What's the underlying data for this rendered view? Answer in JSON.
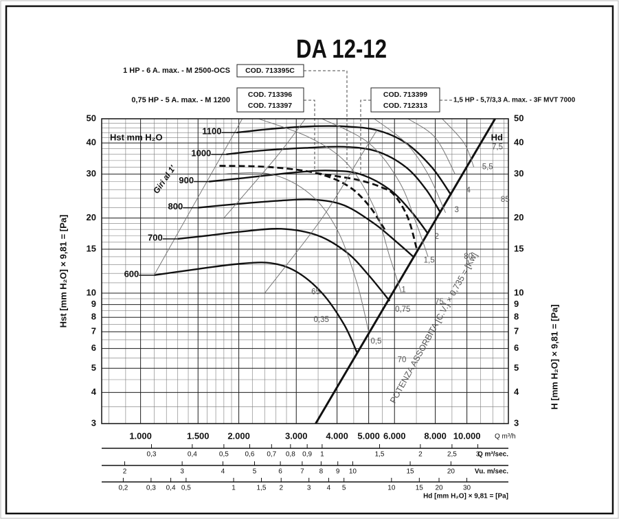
{
  "chart_data": {
    "type": "line",
    "title": "DA 12-12",
    "y_label": "Hst [mm H₂O] × 9,81 = [Pa]",
    "y2_label": "H [mm H₂O] × 9,81 = [Pa]",
    "inner_label": "Hst mm H₂O",
    "x_label": "Q m³/h",
    "power_label": "POTENZA ASSORBITA [C.V.] × 0,735 = [Kw]",
    "xlog": true,
    "ylog": true,
    "xlim": [
      760,
      13400
    ],
    "ylim": [
      3,
      50
    ],
    "xticks": [
      {
        "value": 1000,
        "label": "1.000"
      },
      {
        "value": 1500,
        "label": "1.500"
      },
      {
        "value": 2000,
        "label": "2.000"
      },
      {
        "value": 3000,
        "label": "3.000"
      },
      {
        "value": 4000,
        "label": "4.000"
      },
      {
        "value": 5000,
        "label": "5.000"
      },
      {
        "value": 6000,
        "label": "6.000"
      },
      {
        "value": 8000,
        "label": "8.000"
      },
      {
        "value": 10000,
        "label": "10.000"
      }
    ],
    "yticks": [
      3,
      4,
      5,
      6,
      7,
      8,
      9,
      10,
      15,
      20,
      30,
      40,
      50
    ],
    "xgrid": [
      800,
      900,
      1000,
      1100,
      1200,
      1300,
      1400,
      1500,
      1600,
      1700,
      1800,
      1900,
      2000,
      2200,
      2400,
      2600,
      2800,
      3000,
      3500,
      4000,
      4500,
      5000,
      5500,
      6000,
      7000,
      8000,
      9000,
      10000,
      11000,
      12000,
      13000
    ],
    "ygrid": [
      3,
      3.5,
      4,
      4.5,
      5,
      5.5,
      6,
      6.5,
      7,
      7.5,
      8,
      8.5,
      9,
      9.5,
      10,
      11,
      12,
      13,
      14,
      15,
      16,
      17,
      18,
      19,
      20,
      22,
      24,
      26,
      28,
      30,
      32,
      34,
      36,
      38,
      40,
      42,
      44,
      46,
      48,
      50
    ],
    "grid": true,
    "series": [
      {
        "name": "600",
        "style": "thick",
        "color": "#111",
        "x": [
          1100,
          1500,
          2000,
          2500,
          3000,
          3600,
          4200,
          4600
        ],
        "values": [
          11.8,
          12.5,
          13.1,
          13.2,
          12.2,
          10,
          7.5,
          5.8
        ]
      },
      {
        "name": "700",
        "style": "thick",
        "color": "#111",
        "x": [
          1300,
          1600,
          2000,
          2700,
          3500,
          4300,
          5000,
          5800
        ],
        "values": [
          16.5,
          17,
          17.6,
          18.1,
          17,
          14.5,
          11.8,
          9.3
        ]
      },
      {
        "name": "800",
        "style": "thick",
        "color": "#111",
        "x": [
          1500,
          2000,
          2700,
          3400,
          4200,
          5200,
          6100,
          6850
        ],
        "values": [
          22,
          22.8,
          23.5,
          23.7,
          22.5,
          19,
          16,
          14
        ]
      },
      {
        "name": "900",
        "style": "thick",
        "color": "#111",
        "x": [
          1620,
          2000,
          3000,
          3800,
          4700,
          5800,
          6800,
          7600
        ],
        "values": [
          28,
          28.8,
          30.5,
          31,
          30,
          26,
          21,
          17.3
        ]
      },
      {
        "name": "1000",
        "style": "thick",
        "color": "#111",
        "x": [
          1830,
          2300,
          3200,
          4200,
          5300,
          6500,
          7500,
          8300
        ],
        "values": [
          36,
          37.2,
          38.2,
          38.6,
          37,
          32,
          26,
          21
        ]
      },
      {
        "name": "1100",
        "style": "thick",
        "color": "#111",
        "x": [
          1970,
          2500,
          3300,
          4200,
          5300,
          6500,
          7800,
          8900
        ],
        "values": [
          44,
          45.5,
          46.6,
          46.6,
          45,
          40,
          32,
          25
        ]
      },
      {
        "name": "Hd",
        "style": "heavy",
        "color": "#111",
        "x": [
          3440,
          12200
        ],
        "values": [
          3,
          50
        ]
      },
      {
        "style": "dashed",
        "color": "#111",
        "x": [
          1745,
          2500,
          3440,
          4300,
          5000,
          5630
        ],
        "values": [
          32.4,
          32,
          30.3,
          27,
          22.5,
          17.8
        ]
      },
      {
        "style": "dashed",
        "color": "#111",
        "x": [
          3440,
          4600,
          5500,
          6010,
          6600,
          7050
        ],
        "values": [
          30.3,
          28.5,
          26.5,
          24.6,
          20,
          14.7
        ]
      },
      {
        "style": "thin",
        "color": "#777",
        "x": [
          1100,
          2050
        ],
        "values": [
          11.8,
          50
        ]
      },
      {
        "style": "thin",
        "color": "#777",
        "x": [
          1750,
          2500,
          3300,
          4000,
          4600,
          5000
        ],
        "values": [
          30,
          30,
          25,
          18,
          11,
          7
        ]
      },
      {
        "style": "thin",
        "color": "#777",
        "x": [
          2300,
          3300,
          4300,
          5200,
          5800,
          6300
        ],
        "values": [
          50,
          42,
          33,
          22,
          14,
          10
        ]
      },
      {
        "style": "thin",
        "color": "#777",
        "x": [
          3600,
          5000,
          6200,
          7000,
          7600
        ],
        "values": [
          50,
          40,
          28,
          19,
          14
        ]
      },
      {
        "style": "thin",
        "color": "#777",
        "x": [
          5200,
          6500,
          7600,
          8600
        ],
        "values": [
          50,
          40,
          30,
          21
        ]
      },
      {
        "style": "thin",
        "color": "#777",
        "x": [
          6600,
          8000,
          9200
        ],
        "values": [
          50,
          42,
          30
        ]
      },
      {
        "style": "thin",
        "color": "#777",
        "x": [
          8400,
          9800,
          10500
        ],
        "values": [
          50,
          40,
          32
        ]
      },
      {
        "style": "thin",
        "color": "#777",
        "x": [
          2400,
          3600,
          4700,
          5300
        ],
        "values": [
          10,
          20,
          35,
          45
        ]
      },
      {
        "style": "thin",
        "color": "#777",
        "x": [
          1800,
          2600,
          3200
        ],
        "values": [
          20,
          35,
          50
        ]
      }
    ],
    "annotations": [
      {
        "text": "0,35",
        "x": 3580,
        "y": 7.8
      },
      {
        "text": "0,5",
        "x": 5270,
        "y": 6.4
      },
      {
        "text": "0,75",
        "x": 6360,
        "y": 8.6
      },
      {
        "text": "1",
        "x": 6400,
        "y": 10.3
      },
      {
        "text": "1,5",
        "x": 7660,
        "y": 13.5
      },
      {
        "text": "2",
        "x": 8080,
        "y": 16.8
      },
      {
        "text": "3",
        "x": 9300,
        "y": 21.5
      },
      {
        "text": "4",
        "x": 10100,
        "y": 25.8
      },
      {
        "text": "5,5",
        "x": 11570,
        "y": 32
      },
      {
        "text": "7,5",
        "x": 12400,
        "y": 38.5
      },
      {
        "text": "65",
        "x": 3440,
        "y": 10.1
      },
      {
        "text": "70",
        "x": 6320,
        "y": 5.4
      },
      {
        "text": "75",
        "x": 8230,
        "y": 9.2
      },
      {
        "text": "80",
        "x": 10100,
        "y": 14
      },
      {
        "text": "85",
        "x": 13100,
        "y": 23.7
      }
    ],
    "rpm_label": "Giri al 1'",
    "scales": [
      {
        "label": "Q m³/sec.",
        "lim": [
          0.2111,
          3.722
        ],
        "ticks": [
          {
            "value": 0.3,
            "label": "0,3"
          },
          {
            "value": 0.4,
            "label": "0,4"
          },
          {
            "value": 0.5,
            "label": "0,5"
          },
          {
            "value": 0.6,
            "label": "0,6"
          },
          {
            "value": 0.7,
            "label": "0,7"
          },
          {
            "value": 0.8,
            "label": "0,8"
          },
          {
            "value": 0.9,
            "label": "0,9"
          },
          1,
          {
            "value": 1.5,
            "label": "1,5"
          },
          2,
          {
            "value": 2.5,
            "label": "2,5"
          },
          3
        ]
      },
      {
        "label": "Vu. m/sec.",
        "lim": [
          1.7,
          30
        ],
        "ticks": [
          2,
          3,
          4,
          5,
          6,
          7,
          8,
          9,
          10,
          15,
          20
        ]
      },
      {
        "label": "Hd [mm H₂O] × 9,81 = [Pa]",
        "lim": [
          0.146,
          55
        ],
        "ticks": [
          {
            "value": 0.2,
            "label": "0,2"
          },
          {
            "value": 0.3,
            "label": "0,3"
          },
          {
            "value": 0.4,
            "label": "0,4"
          },
          {
            "value": 0.5,
            "label": "0,5"
          },
          1,
          {
            "value": 1.5,
            "label": "1,5"
          },
          2,
          3,
          4,
          5,
          10,
          15,
          20,
          30
        ]
      }
    ],
    "motors": [
      {
        "desc": "1 HP - 6 A. max. - M 2500-OCS",
        "codes": [
          "COD. 713395C"
        ]
      },
      {
        "desc": "0,75 HP - 5 A. max. - M 1200",
        "codes": [
          "COD. 713396",
          "COD. 713397"
        ]
      },
      {
        "desc": "1,5 HP - 5,7/3,3 A. max. - 3F MVT 7000",
        "codes": [
          "COD. 713399",
          "COD. 712313"
        ]
      }
    ]
  }
}
